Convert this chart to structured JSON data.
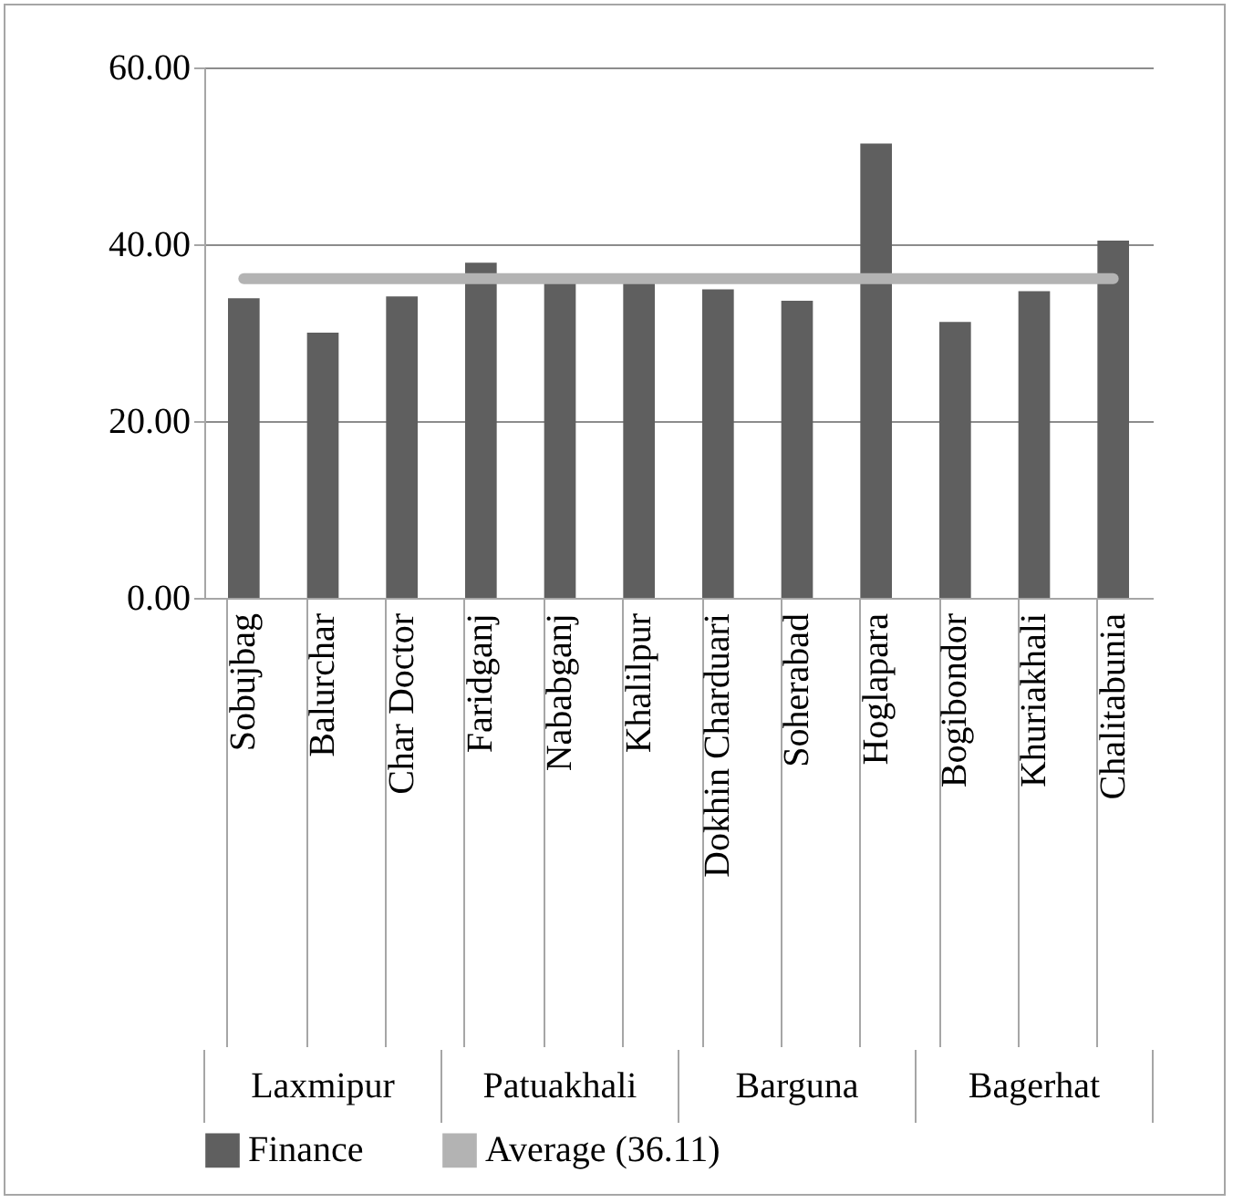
{
  "chart_data": {
    "type": "bar",
    "categories": [
      "Sobujbag",
      "Balurchar",
      "Char Doctor",
      "Faridganj",
      "Nababganj",
      "Khalilpur",
      "Dokhin Charduari",
      "Soherabad",
      "Hoglapara",
      "Bogibondor",
      "Khuriakhali",
      "Chalitabunia"
    ],
    "series": [
      {
        "name": "Finance",
        "color": "#5f5f5f",
        "values": [
          33.9,
          30.0,
          34.1,
          37.9,
          35.8,
          35.8,
          34.9,
          33.6,
          51.4,
          31.2,
          34.7,
          40.4
        ]
      },
      {
        "name": "Average (36.11)",
        "type": "line",
        "color": "#b3b3b3",
        "values": [
          36.11,
          36.11,
          36.11,
          36.11,
          36.11,
          36.11,
          36.11,
          36.11,
          36.11,
          36.11,
          36.11,
          36.11
        ]
      }
    ],
    "annotations": [
      "Laxmipur",
      "Patuakhali",
      "Barguna",
      "Bagerhat"
    ],
    "ylim": [
      0,
      60
    ],
    "yticks": [
      {
        "value": 0,
        "label": "0.00"
      },
      {
        "value": 20,
        "label": "20.00"
      },
      {
        "value": 40,
        "label": "40.00"
      },
      {
        "value": 60,
        "label": "60.00"
      }
    ],
    "grid": "y",
    "legend": "bottom"
  }
}
